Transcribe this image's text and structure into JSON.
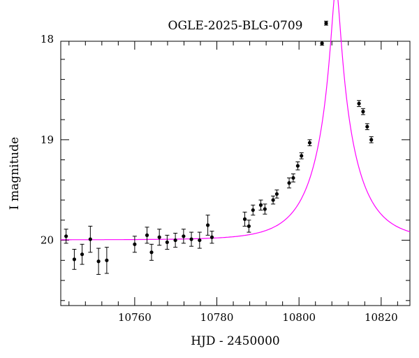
{
  "chart_data": {
    "type": "scatter",
    "title": "OGLE-2025-BLG-0709",
    "xlabel": "HJD - 2450000",
    "ylabel": "I magnitude",
    "xlim": [
      10742,
      10827
    ],
    "ylim": [
      20.65,
      18.02
    ],
    "y_inverted": true,
    "grid": false,
    "x_ticks": [
      10760,
      10780,
      10800,
      10820
    ],
    "x_tick_labels": [
      "10760",
      "10780",
      "10800",
      "10820"
    ],
    "x_minor_step": 4,
    "y_ticks": [
      18,
      19,
      20
    ],
    "y_tick_labels": [
      "18",
      "19",
      "20"
    ],
    "y_minor_step": 0.2,
    "colors": {
      "model": "#ff00ff",
      "points": "#000000"
    },
    "series": [
      {
        "type": "scatter_errorbars",
        "x": [
          10743.3,
          10745.3,
          10747.2,
          10749.2,
          10751.2,
          10753.2,
          10760.0,
          10763.0,
          10764.1,
          10766.0,
          10767.9,
          10769.9,
          10771.9,
          10773.8,
          10775.8,
          10777.8,
          10778.8,
          10786.8,
          10787.8,
          10788.8,
          10790.7,
          10791.7,
          10793.7,
          10794.6,
          10797.6,
          10798.6,
          10799.7,
          10800.6,
          10802.6,
          10805.6,
          10806.6,
          10814.6,
          10815.6,
          10816.6,
          10817.6
        ],
        "y": [
          19.96,
          20.19,
          20.14,
          19.99,
          20.21,
          20.2,
          20.04,
          19.95,
          20.12,
          19.97,
          20.02,
          20.0,
          19.96,
          19.99,
          20.0,
          19.85,
          19.97,
          19.79,
          19.86,
          19.7,
          19.65,
          19.69,
          19.6,
          19.54,
          19.43,
          19.38,
          19.26,
          19.16,
          19.03,
          18.04,
          17.84,
          18.64,
          18.72,
          18.87,
          19.0
        ],
        "err": [
          0.07,
          0.1,
          0.1,
          0.13,
          0.13,
          0.13,
          0.08,
          0.08,
          0.08,
          0.08,
          0.07,
          0.07,
          0.07,
          0.07,
          0.08,
          0.1,
          0.06,
          0.07,
          0.06,
          0.05,
          0.05,
          0.05,
          0.04,
          0.04,
          0.05,
          0.04,
          0.04,
          0.03,
          0.03,
          0.02,
          0.02,
          0.03,
          0.03,
          0.03,
          0.03
        ]
      },
      {
        "type": "model_curve",
        "baseline": 19.996,
        "t0": 10809.0,
        "u0": 0.1,
        "tE": 9.8
      }
    ]
  }
}
